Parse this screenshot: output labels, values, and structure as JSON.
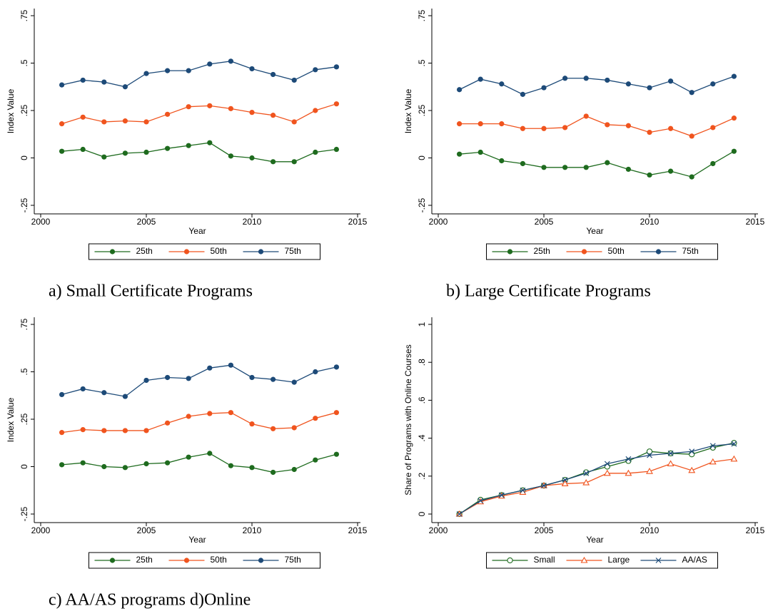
{
  "chart_data": [
    {
      "type": "line",
      "caption": "a) Small Certificate Programs",
      "x_label": "Year",
      "y_label": "Index Value",
      "x": [
        2001,
        2002,
        2003,
        2004,
        2005,
        2006,
        2007,
        2008,
        2009,
        2010,
        2011,
        2012,
        2013,
        2014
      ],
      "xlim": [
        2000,
        2015
      ],
      "xticks": [
        2000,
        2005,
        2010,
        2015
      ],
      "ylim": [
        -0.25,
        0.75
      ],
      "yticks": [
        {
          "value": -0.25,
          "label": "-.25"
        },
        0,
        {
          "value": 0.25,
          "label": ".25"
        },
        {
          "value": 0.5,
          "label": ".5"
        },
        {
          "value": 0.75,
          "label": ".75"
        }
      ],
      "series": [
        {
          "name": "25th",
          "color": "#1e6b1e",
          "marker": "circle",
          "values": [
            0.035,
            0.045,
            0.005,
            0.025,
            0.03,
            0.05,
            0.065,
            0.08,
            0.01,
            0,
            -0.02,
            -0.02,
            0.03,
            0.045
          ]
        },
        {
          "name": "50th",
          "color": "#f0541e",
          "marker": "circle",
          "values": [
            0.18,
            0.215,
            0.19,
            0.195,
            0.19,
            0.23,
            0.27,
            0.275,
            0.26,
            0.24,
            0.225,
            0.19,
            0.25,
            0.285
          ]
        },
        {
          "name": "75th",
          "color": "#1d4a78",
          "marker": "circle",
          "values": [
            0.385,
            0.41,
            0.4,
            0.375,
            0.445,
            0.46,
            0.46,
            0.495,
            0.51,
            0.47,
            0.44,
            0.41,
            0.465,
            0.48
          ]
        }
      ]
    },
    {
      "type": "line",
      "caption": "b) Large Certificate Programs",
      "x_label": "Year",
      "y_label": "Index Value",
      "x": [
        2001,
        2002,
        2003,
        2004,
        2005,
        2006,
        2007,
        2008,
        2009,
        2010,
        2011,
        2012,
        2013,
        2014
      ],
      "xlim": [
        2000,
        2015
      ],
      "xticks": [
        2000,
        2005,
        2010,
        2015
      ],
      "ylim": [
        -0.25,
        0.75
      ],
      "yticks": [
        {
          "value": -0.25,
          "label": "-.25"
        },
        0,
        {
          "value": 0.25,
          "label": ".25"
        },
        {
          "value": 0.5,
          "label": ".5"
        },
        {
          "value": 0.75,
          "label": ".75"
        }
      ],
      "series": [
        {
          "name": "25th",
          "color": "#1e6b1e",
          "marker": "circle",
          "values": [
            0.02,
            0.03,
            -0.015,
            -0.03,
            -0.05,
            -0.05,
            -0.05,
            -0.025,
            -0.06,
            -0.09,
            -0.07,
            -0.1,
            -0.03,
            0.035
          ]
        },
        {
          "name": "50th",
          "color": "#f0541e",
          "marker": "circle",
          "values": [
            0.18,
            0.18,
            0.18,
            0.155,
            0.155,
            0.16,
            0.22,
            0.175,
            0.17,
            0.135,
            0.155,
            0.115,
            0.16,
            0.21
          ]
        },
        {
          "name": "75th",
          "color": "#1d4a78",
          "marker": "circle",
          "values": [
            0.36,
            0.415,
            0.39,
            0.335,
            0.37,
            0.42,
            0.42,
            0.41,
            0.39,
            0.37,
            0.405,
            0.345,
            0.39,
            0.43
          ]
        }
      ]
    },
    {
      "type": "line",
      "caption": "c) AA/AS programs d)Online",
      "x_label": "Year",
      "y_label": "Index Value",
      "x": [
        2001,
        2002,
        2003,
        2004,
        2005,
        2006,
        2007,
        2008,
        2009,
        2010,
        2011,
        2012,
        2013,
        2014
      ],
      "xlim": [
        2000,
        2015
      ],
      "xticks": [
        2000,
        2005,
        2010,
        2015
      ],
      "ylim": [
        -0.25,
        0.75
      ],
      "yticks": [
        {
          "value": -0.25,
          "label": "-.25"
        },
        0,
        {
          "value": 0.25,
          "label": ".25"
        },
        {
          "value": 0.5,
          "label": ".5"
        },
        {
          "value": 0.75,
          "label": ".75"
        }
      ],
      "series": [
        {
          "name": "25th",
          "color": "#1e6b1e",
          "marker": "circle",
          "values": [
            0.01,
            0.02,
            0,
            -0.005,
            0.015,
            0.02,
            0.05,
            0.07,
            0.005,
            -0.005,
            -0.03,
            -0.015,
            0.035,
            0.065
          ]
        },
        {
          "name": "50th",
          "color": "#f0541e",
          "marker": "circle",
          "values": [
            0.18,
            0.195,
            0.19,
            0.19,
            0.19,
            0.23,
            0.265,
            0.28,
            0.285,
            0.225,
            0.2,
            0.205,
            0.255,
            0.285
          ]
        },
        {
          "name": "75th",
          "color": "#1d4a78",
          "marker": "circle",
          "values": [
            0.38,
            0.41,
            0.39,
            0.37,
            0.455,
            0.47,
            0.465,
            0.52,
            0.535,
            0.47,
            0.46,
            0.445,
            0.5,
            0.525
          ]
        }
      ]
    },
    {
      "type": "line",
      "x_label": "Year",
      "y_label": "Share of Programs with Online Courses",
      "x": [
        2001,
        2002,
        2003,
        2004,
        2005,
        2006,
        2007,
        2008,
        2009,
        2010,
        2011,
        2012,
        2013,
        2014
      ],
      "xlim": [
        2000,
        2015
      ],
      "xticks": [
        2000,
        2005,
        2010,
        2015
      ],
      "ylim": [
        0,
        1
      ],
      "yticks": [
        0,
        {
          "value": 0.2,
          "label": ".2"
        },
        {
          "value": 0.4,
          "label": ".4"
        },
        {
          "value": 0.6,
          "label": ".6"
        },
        {
          "value": 0.8,
          "label": ".8"
        },
        1
      ],
      "series": [
        {
          "name": "Small",
          "color": "#1e6b1e",
          "marker": "open-circle",
          "values": [
            0,
            0.075,
            0.1,
            0.125,
            0.15,
            0.18,
            0.22,
            0.25,
            0.28,
            0.33,
            0.32,
            0.315,
            0.35,
            0.375
          ]
        },
        {
          "name": "Large",
          "color": "#f0541e",
          "marker": "triangle",
          "values": [
            0,
            0.065,
            0.095,
            0.115,
            0.15,
            0.16,
            0.165,
            0.215,
            0.215,
            0.225,
            0.265,
            0.23,
            0.275,
            0.29
          ]
        },
        {
          "name": "AA/AS",
          "color": "#1d4a78",
          "marker": "x",
          "values": [
            0,
            0.07,
            0.1,
            0.125,
            0.15,
            0.18,
            0.215,
            0.265,
            0.29,
            0.31,
            0.32,
            0.33,
            0.36,
            0.37
          ]
        }
      ]
    }
  ]
}
